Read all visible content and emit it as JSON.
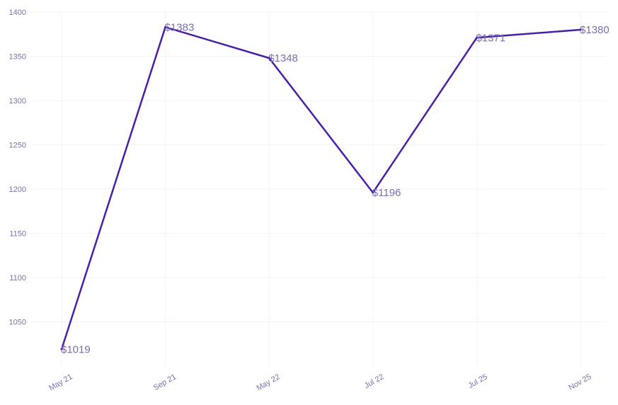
{
  "chart_data": {
    "type": "line",
    "categories": [
      "May 21",
      "Sep 21",
      "May 22",
      "Jul 22",
      "Jul 25",
      "Nov 25"
    ],
    "series": [
      {
        "values": [
          1019,
          1383,
          1348,
          1196,
          1371,
          1380
        ]
      }
    ],
    "data_labels": [
      "$1019",
      "$1383",
      "$1348",
      "$1196",
      "$1371",
      "$1380"
    ],
    "y_ticks": [
      1050,
      1100,
      1150,
      1200,
      1250,
      1300,
      1350,
      1400
    ],
    "ylim": [
      1000,
      1400
    ],
    "title": "",
    "xlabel": "",
    "ylabel": "",
    "grid": true,
    "legend": "none",
    "colors": {
      "line": "#4b1fa8",
      "label": "#7b6fb0",
      "tick": "#7b6fb0",
      "grid": "#f3f3f7"
    }
  }
}
